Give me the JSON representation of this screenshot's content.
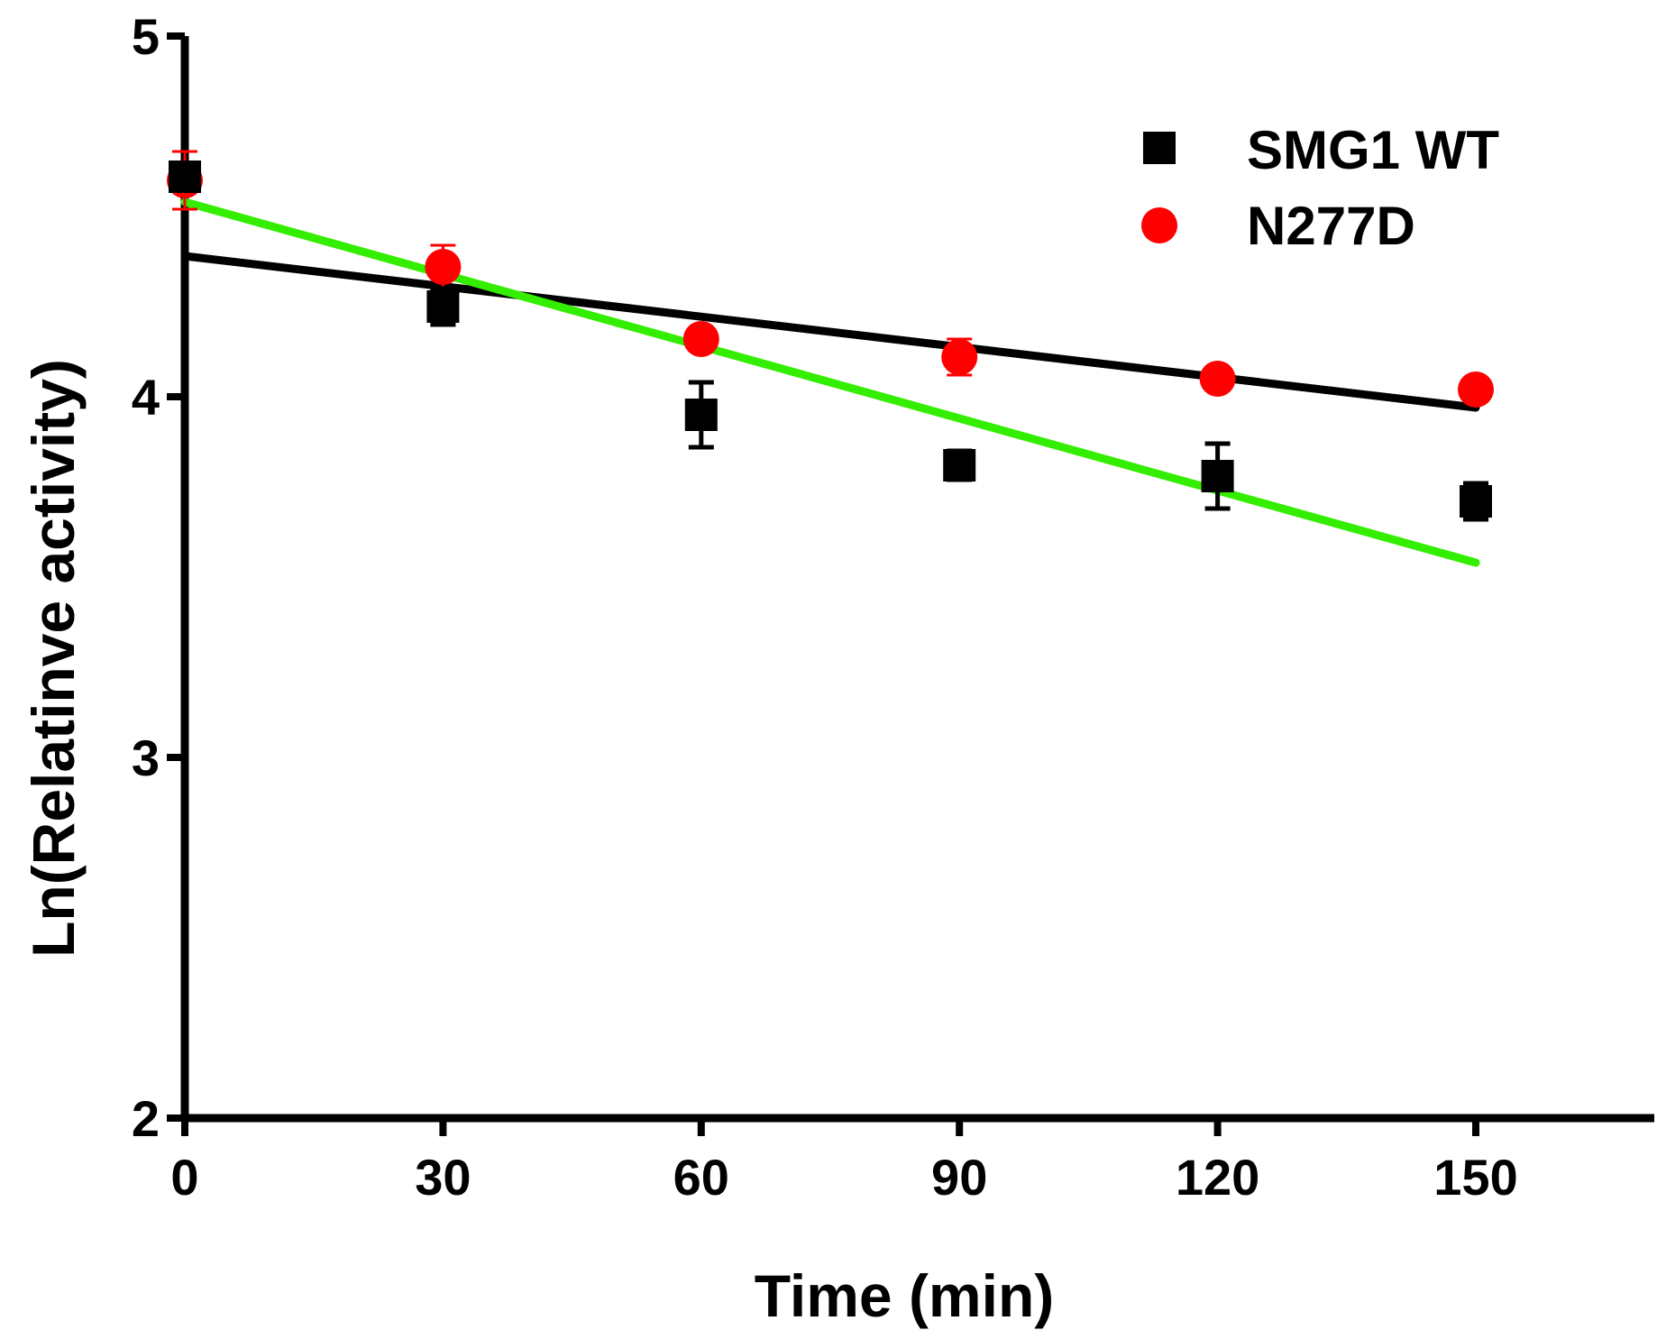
{
  "chart_data": {
    "type": "scatter",
    "title": "",
    "xlabel": "Time (min)",
    "ylabel": "Ln(Relatinve activity)",
    "xlim": [
      0,
      170
    ],
    "ylim": [
      2,
      5
    ],
    "xticks": [
      0,
      30,
      60,
      90,
      120,
      150
    ],
    "yticks": [
      2,
      3,
      4,
      5
    ],
    "legend_position": "top-right",
    "series": [
      {
        "name": "SMG1 WT",
        "marker": "square",
        "color": "#000000",
        "x": [
          0,
          30,
          60,
          90,
          120,
          150
        ],
        "y": [
          4.61,
          4.25,
          3.95,
          3.81,
          3.78,
          3.71
        ],
        "error": [
          0.03,
          0.05,
          0.09,
          0.04,
          0.09,
          0.05
        ]
      },
      {
        "name": "N277D",
        "marker": "circle",
        "color": "#ff0000",
        "x": [
          0,
          30,
          60,
          90,
          120,
          150
        ],
        "y": [
          4.6,
          4.36,
          4.16,
          4.11,
          4.05,
          4.02
        ],
        "error": [
          0.08,
          0.06,
          0.02,
          0.05,
          0.02,
          0.02
        ]
      }
    ],
    "fit_lines": [
      {
        "name": "black-fit",
        "color": "#000000",
        "x": [
          0,
          150
        ],
        "y": [
          4.39,
          3.97
        ]
      },
      {
        "name": "green-fit",
        "color": "#33ee00",
        "x": [
          0,
          150
        ],
        "y": [
          4.54,
          3.54
        ]
      }
    ]
  }
}
